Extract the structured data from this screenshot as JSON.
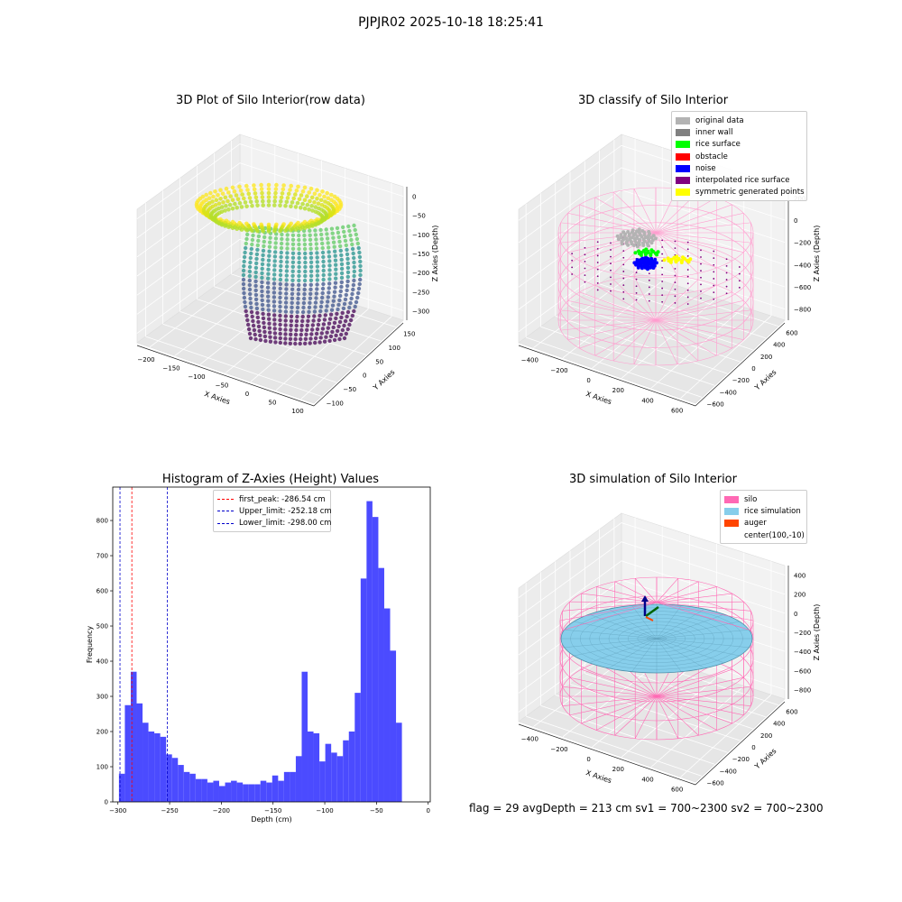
{
  "suptitle": "PJPJR02 2025-10-18 18:25:41",
  "chart_data": [
    {
      "type": "scatter",
      "title": "3D Plot of Silo Interior(row data)",
      "xlabel": "X Axies",
      "ylabel": "Y Axies",
      "zlabel": "Z Axies (Depth)",
      "xticks": [
        "−200",
        "−150",
        "−100",
        "−50",
        "0",
        "50",
        "100"
      ],
      "yticks": [
        "−100",
        "−50",
        "0",
        "50",
        "100",
        "150"
      ],
      "zticks": [
        "0",
        "−50",
        "−100",
        "−150",
        "−200",
        "−250",
        "−300"
      ],
      "xlim": [
        -240,
        130
      ],
      "ylim": [
        -120,
        170
      ],
      "zlim": [
        -330,
        0
      ],
      "colormap": "viridis"
    },
    {
      "type": "scatter",
      "title": "3D classify of Silo Interior",
      "xlabel": "X Axies",
      "ylabel": "Y Axies",
      "zlabel": "Z Axies (Depth)",
      "xticks": [
        "−400",
        "−200",
        "0",
        "200",
        "400",
        "600"
      ],
      "yticks": [
        "−600",
        "−400",
        "−200",
        "0",
        "200",
        "400",
        "600"
      ],
      "zticks": [
        "200",
        "0",
        "−200",
        "−400",
        "−600",
        "−800"
      ],
      "legend": [
        {
          "label": "original data",
          "color": "#b3b3b3"
        },
        {
          "label": "inner wall",
          "color": "#808080"
        },
        {
          "label": "rice surface",
          "color": "#00ff00"
        },
        {
          "label": "obstacle",
          "color": "#ff0000"
        },
        {
          "label": "noise",
          "color": "#0000ff"
        },
        {
          "label": "interpolated rice surface",
          "color": "#800080"
        },
        {
          "label": "symmetric generated points",
          "color": "#ffff00"
        }
      ]
    },
    {
      "type": "bar",
      "title": "Histogram of Z-Axies (Height) Values",
      "xlabel": "Depth (cm)",
      "ylabel": "Frequency",
      "xlim": [
        -305,
        2
      ],
      "ylim": [
        0,
        895
      ],
      "xticks": [
        -300,
        -250,
        -200,
        -150,
        -100,
        -50,
        0
      ],
      "yticks": [
        0,
        100,
        200,
        300,
        400,
        500,
        600,
        700,
        800
      ],
      "bin_start": -299,
      "bin_width": 5.7,
      "values": [
        80,
        275,
        370,
        280,
        225,
        200,
        195,
        185,
        135,
        125,
        105,
        85,
        80,
        65,
        65,
        55,
        60,
        45,
        55,
        60,
        55,
        50,
        50,
        50,
        60,
        55,
        75,
        60,
        85,
        85,
        130,
        370,
        200,
        195,
        115,
        165,
        140,
        130,
        175,
        200,
        310,
        635,
        855,
        810,
        665,
        550,
        430,
        225
      ],
      "bar_color": "#4b4bff",
      "vlines": [
        {
          "label": "first_peak: -286.54 cm",
          "x": -286.54,
          "color": "#ff0000"
        },
        {
          "label": "Upper_limit: -252.18 cm",
          "x": -252.18,
          "color": "#0000cc"
        },
        {
          "label": "Lower_limit: -298.00 cm",
          "x": -298.0,
          "color": "#0000cc"
        }
      ]
    },
    {
      "type": "surface",
      "title": "3D simulation of Silo Interior",
      "xlabel": "X Axies",
      "ylabel": "Y Axies",
      "zlabel": "Z Axies (Depth)",
      "xticks": [
        "−400",
        "−200",
        "0",
        "200",
        "400",
        "600"
      ],
      "yticks": [
        "−600",
        "−400",
        "−200",
        "0",
        "200",
        "400",
        "600"
      ],
      "zticks": [
        "400",
        "200",
        "0",
        "−200",
        "−400",
        "−600",
        "−800"
      ],
      "legend": [
        {
          "label": "silo",
          "color": "#ff69b4"
        },
        {
          "label": "rice simulation",
          "color": "#87ceeb"
        },
        {
          "label": "auger",
          "color": "#ff4500"
        },
        {
          "label": "center(100,-10)",
          "color": ""
        }
      ]
    }
  ],
  "footer": "flag = 29  avgDepth = 213 cm  sv1 = 700~2300  sv2 = 700~2300"
}
